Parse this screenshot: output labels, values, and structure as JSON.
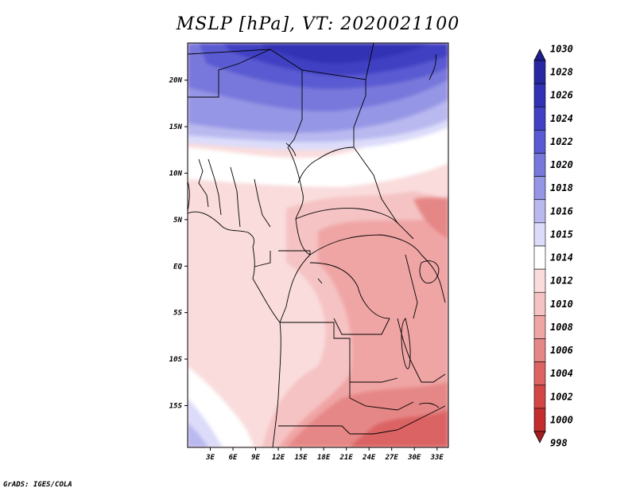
{
  "title": "MSLP [hPa], VT: 2020021100",
  "credit": "GrADS: IGES/COLA",
  "map": {
    "lon_range": [
      0,
      34.5
    ],
    "lat_range": [
      -19.5,
      24
    ],
    "lon_ticks": [
      {
        "value": 3,
        "label": "3E"
      },
      {
        "value": 6,
        "label": "6E"
      },
      {
        "value": 9,
        "label": "9E"
      },
      {
        "value": 12,
        "label": "12E"
      },
      {
        "value": 15,
        "label": "15E"
      },
      {
        "value": 18,
        "label": "18E"
      },
      {
        "value": 21,
        "label": "21E"
      },
      {
        "value": 24,
        "label": "24E"
      },
      {
        "value": 27,
        "label": "27E"
      },
      {
        "value": 30,
        "label": "30E"
      },
      {
        "value": 33,
        "label": "33E"
      }
    ],
    "lat_ticks": [
      {
        "value": 20,
        "label": "20N"
      },
      {
        "value": 15,
        "label": "15N"
      },
      {
        "value": 10,
        "label": "10N"
      },
      {
        "value": 5,
        "label": "5N"
      },
      {
        "value": 0,
        "label": "EQ"
      },
      {
        "value": -5,
        "label": "5S"
      },
      {
        "value": -10,
        "label": "10S"
      },
      {
        "value": -15,
        "label": "15S"
      }
    ]
  },
  "colorbar": {
    "levels": [
      {
        "label": "1030",
        "color": "#1e1e8c"
      },
      {
        "label": "1028",
        "color": "#2828a0"
      },
      {
        "label": "1026",
        "color": "#3232b4"
      },
      {
        "label": "1024",
        "color": "#4141c3"
      },
      {
        "label": "1022",
        "color": "#5a5ad2"
      },
      {
        "label": "1020",
        "color": "#7878dc"
      },
      {
        "label": "1018",
        "color": "#9696e6"
      },
      {
        "label": "1016",
        "color": "#b9b9f0"
      },
      {
        "label": "1015",
        "color": "#dcdcfa"
      },
      {
        "label": "1014",
        "color": "#ffffff"
      },
      {
        "label": "1012",
        "color": "#fadcdc"
      },
      {
        "label": "1010",
        "color": "#f5c3c3"
      },
      {
        "label": "1008",
        "color": "#f0a5a5"
      },
      {
        "label": "1006",
        "color": "#e68787"
      },
      {
        "label": "1004",
        "color": "#dc6464"
      },
      {
        "label": "1002",
        "color": "#d24646"
      },
      {
        "label": "1000",
        "color": "#c32d2d"
      },
      {
        "label": "998",
        "color": "#a51e1e"
      }
    ]
  }
}
